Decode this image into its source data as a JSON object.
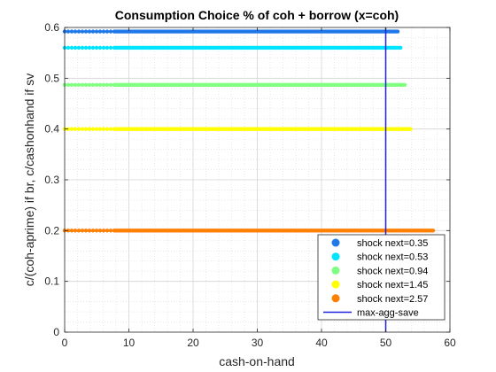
{
  "chart_data": {
    "type": "scatter",
    "title": "Consumption Choice % of coh + borrow (x=coh)",
    "xlabel": "cash-on-hand",
    "ylabel": "c/(coh-aprime) if br, c/cashonhand if sv",
    "xlim": [
      0,
      60
    ],
    "ylim": [
      0,
      0.6
    ],
    "xticks": [
      "0",
      "10",
      "20",
      "30",
      "40",
      "50",
      "60"
    ],
    "yticks": [
      "0",
      "0.1",
      "0.2",
      "0.3",
      "0.4",
      "0.5",
      "0.6"
    ],
    "grid": true,
    "minor_grid": true,
    "legend_position": "bottom-right",
    "series": [
      {
        "name": "shock next=0.35",
        "color": "#1f77e8",
        "x_range": [
          0,
          52
        ],
        "y": 0.592
      },
      {
        "name": "shock next=0.53",
        "color": "#00e5ff",
        "x_range": [
          0,
          52.5
        ],
        "y": 0.56
      },
      {
        "name": "shock next=0.94",
        "color": "#80ff80",
        "x_range": [
          0,
          53
        ],
        "y": 0.487
      },
      {
        "name": "shock next=1.45",
        "color": "#ffff00",
        "x_range": [
          0,
          54
        ],
        "y": 0.4
      },
      {
        "name": "shock next=2.57",
        "color": "#ff7f00",
        "x_range": [
          0,
          57.5
        ],
        "y": 0.2
      }
    ],
    "vline": {
      "name": "max-agg-save",
      "x": 50,
      "color": "#2020e0"
    }
  }
}
